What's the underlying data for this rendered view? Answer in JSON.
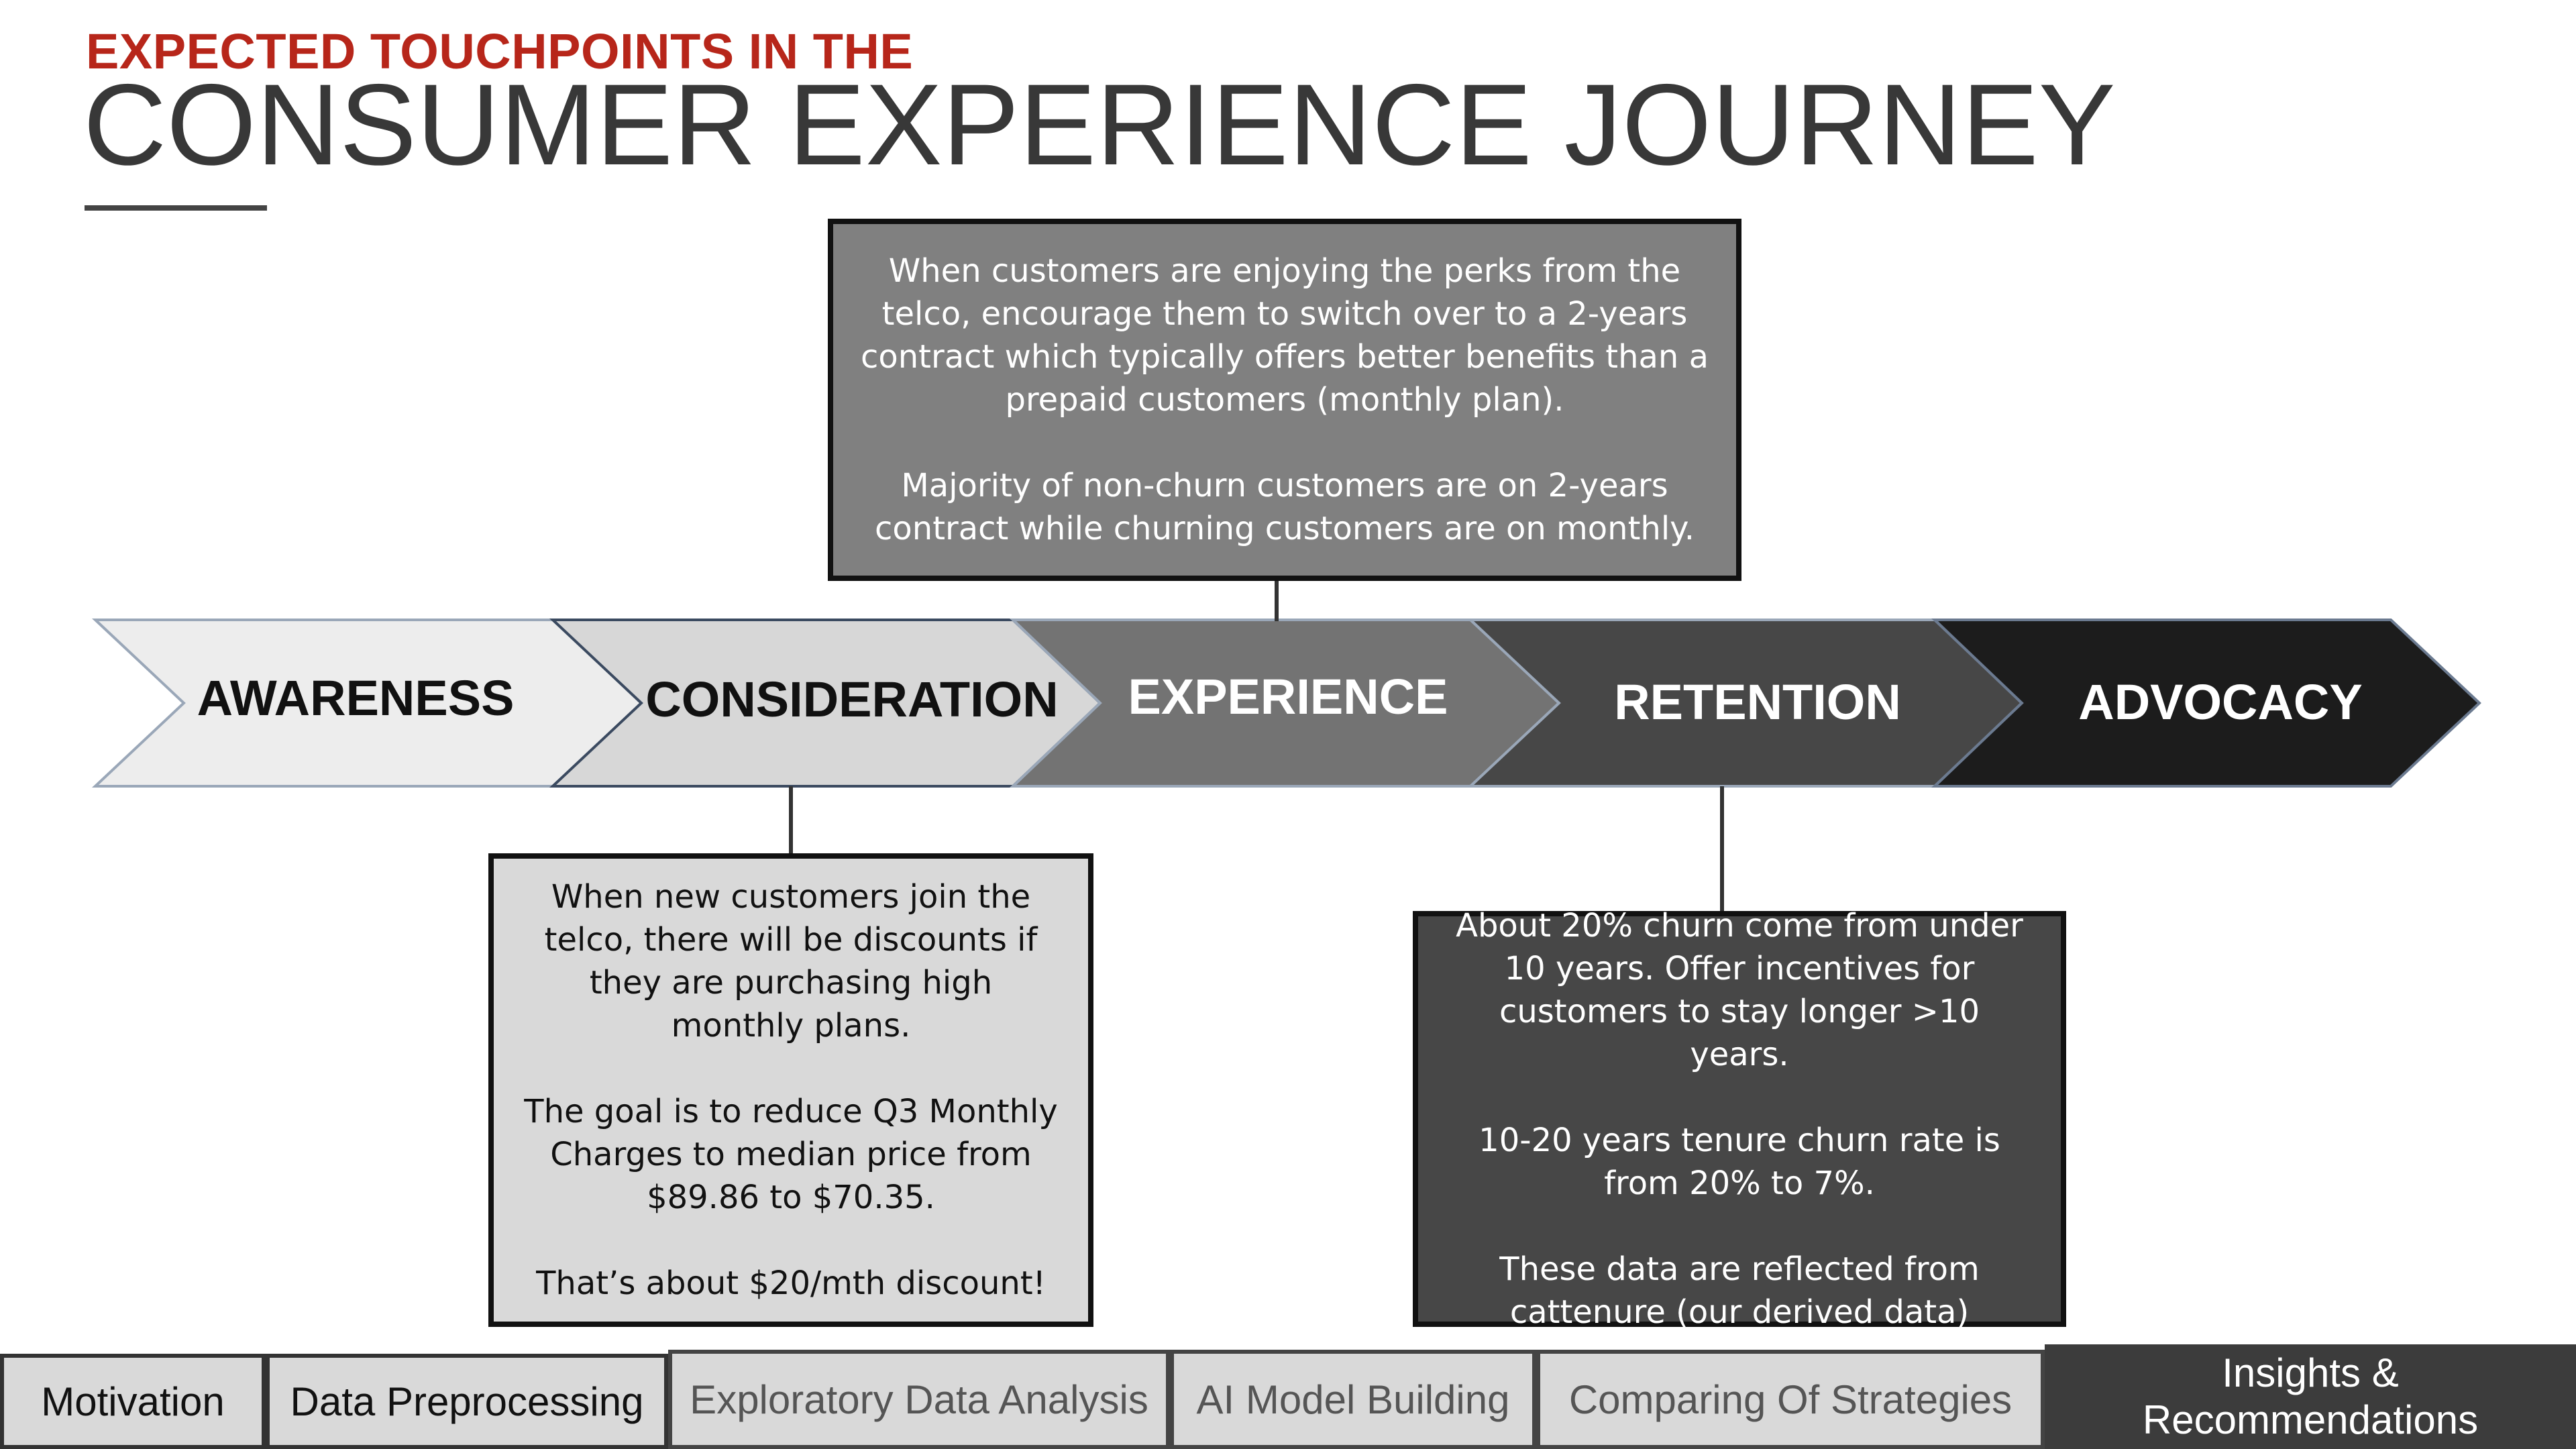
{
  "header": {
    "subtitle": "EXPECTED TOUCHPOINTS IN THE",
    "title": "CONSUMER EXPERIENCE JOURNEY"
  },
  "stages": [
    {
      "label": "AWARENESS",
      "fill": "#ededed",
      "text_color": "#111111"
    },
    {
      "label": "CONSIDERATION",
      "fill": "#d7d7d7",
      "text_color": "#111111"
    },
    {
      "label": "EXPERIENCE",
      "fill": "#737373",
      "text_color": "#ffffff"
    },
    {
      "label": "RETENTION",
      "fill": "#474747",
      "text_color": "#ffffff"
    },
    {
      "label": "ADVOCACY",
      "fill": "#1c1c1c",
      "text_color": "#ffffff"
    }
  ],
  "notes": {
    "experience": "When customers are enjoying the perks from the telco, encourage them to switch over to a 2-years contract which typically offers better benefits than a prepaid customers (monthly plan).\n\nMajority of non-churn customers are on 2-years contract while churning customers are on monthly.",
    "consideration": "When new customers join the telco, there will be discounts if they are purchasing high monthly plans.\n\nThe goal is to reduce Q3 Monthly Charges to median price from $89.86 to $70.35.\n\nThat’s about $20/mth discount!",
    "retention": "About 20% churn come from under 10 years. Offer incentives for customers to stay longer >10 years.\n\n10-20 years tenure churn rate is from 20% to 7%.\n\nThese data are reflected from cattenure (our derived data)"
  },
  "colors": {
    "title_red": "#b7261a",
    "experience_note_bg": "#808080",
    "consideration_note_bg": "#d9d9d9",
    "retention_note_bg": "#474747",
    "nav_active_bg": "#3c3c3c"
  },
  "nav": {
    "tabs": [
      "Motivation",
      "Data Preprocessing",
      "Exploratory Data Analysis",
      "AI Model Building",
      "Comparing Of Strategies",
      "Insights &\nRecommendations"
    ],
    "active_tab": "Insights &\nRecommendations"
  }
}
